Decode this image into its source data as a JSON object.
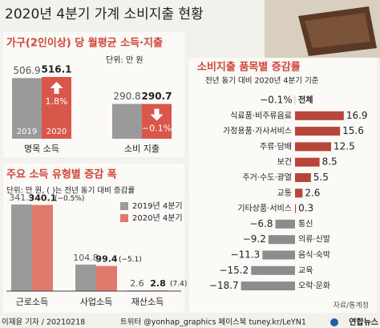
{
  "title": "2020년 4분기 가계 소비지출 현황",
  "chart_data": [
    {
      "type": "bar",
      "title": "가구(2인이상) 당 월평균 소득·지출",
      "unit": "단위: 만 원",
      "categories": [
        "명목 소득",
        "소비 지출"
      ],
      "series": [
        {
          "name": "2019",
          "color": "#9a9a9a",
          "values": [
            506.9,
            290.8
          ]
        },
        {
          "name": "2020",
          "color": "#d9574a",
          "values": [
            516.1,
            290.7
          ]
        }
      ],
      "change_labels": [
        "1.8%",
        "−0.1%"
      ]
    },
    {
      "type": "bar",
      "title": "주요 소득 유형별 증감 폭",
      "unit": "단위: 만 원, ( )는 전년 동기 대비 증감률",
      "categories": [
        "근로소득",
        "사업소득",
        "재산소득"
      ],
      "series": [
        {
          "name": "2019년 4분기",
          "color": "#9a9a9a",
          "values": [
            341.9,
            104.8,
            2.6
          ]
        },
        {
          "name": "2020년 4분기",
          "color": "#e07a6c",
          "values": [
            340.1,
            99.4,
            2.8
          ]
        }
      ],
      "annotations": [
        "(−0.5%)",
        "(−5.1)",
        "(7.4)"
      ]
    },
    {
      "type": "hbar",
      "title": "소비지출 품목별 증감률",
      "subtitle": "전년 동기 대비 2020년 4분기 기준",
      "categories": [
        "전체",
        "식료품·비주류음료",
        "가정용품·가사서비스",
        "주류·담배",
        "보건",
        "주거·수도·광열",
        "교통",
        "기타상품·서비스",
        "통신",
        "의류·신발",
        "음식·숙박",
        "교육",
        "오락·문화"
      ],
      "values": [
        -0.1,
        16.9,
        15.6,
        12.5,
        8.5,
        5.5,
        2.6,
        0.3,
        -6.8,
        -9.2,
        -11.3,
        -15.2,
        -18.7
      ],
      "value_labels": [
        "−0.1%",
        "16.9",
        "15.6",
        "12.5",
        "8.5",
        "5.5",
        "2.6",
        "0.3",
        "−6.8",
        "−9.2",
        "−11.3",
        "−15.2",
        "−18.7"
      ],
      "positive_color": "#b8453a",
      "negative_color": "#8c8c8c",
      "source": "자료/통계청"
    }
  ],
  "footer": {
    "byline": "이재윤 기자 / 20210218",
    "social": "트위터 @yonhap_graphics 페이스북 tuney.kr/LeYN1",
    "brand": "연합뉴스"
  }
}
